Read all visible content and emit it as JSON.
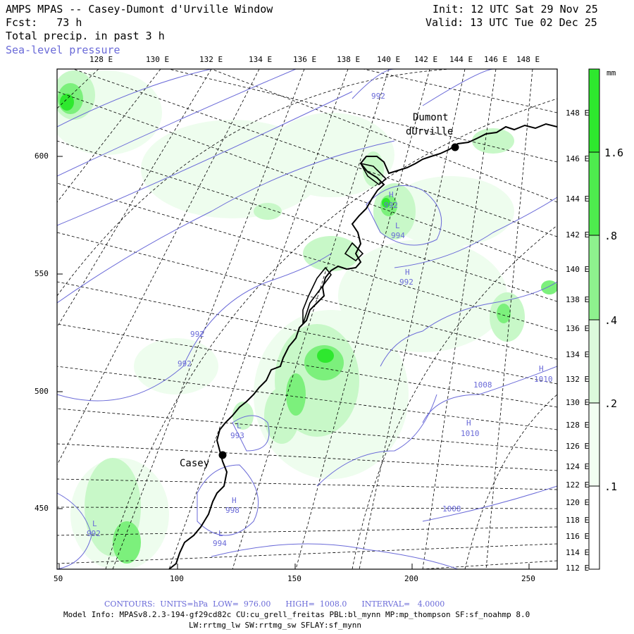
{
  "header": {
    "title": "AMPS MPAS -- Casey-Dumont d'Urville Window",
    "fcst": "Fcst:   73 h",
    "field": "Total precip. in past 3 h",
    "overlay": "Sea-level pressure",
    "init": "Init: 12 UTC Sat 29 Nov 25",
    "valid": "Valid: 13 UTC Tue 02 Dec 25"
  },
  "top_lon_labels": [
    "128 E",
    "130 E",
    "132 E",
    "134 E",
    "136 E",
    "138 E",
    "140 E",
    "142 E",
    "144 E",
    "146 E",
    "148 E"
  ],
  "right_lon_labels": [
    "148 E",
    "146 E",
    "144 E",
    "142 E",
    "140 E",
    "138 E",
    "136 E",
    "134 E",
    "132 E",
    "130 E",
    "128 E",
    "126 E",
    "124 E",
    "122 E",
    "120 E",
    "118 E",
    "116 E",
    "114 E",
    "112 E"
  ],
  "x_ticks": [
    "50",
    "100",
    "150",
    "200",
    "250"
  ],
  "y_ticks": [
    "600",
    "550",
    "500",
    "450"
  ],
  "stations": [
    {
      "name": "Dumont",
      "name2": "dUrville"
    },
    {
      "name": "Casey"
    }
  ],
  "pressure_labels": [
    "992",
    "H",
    "992",
    "L",
    "994",
    "H",
    "992",
    "992",
    "992",
    "L",
    "993",
    "1008",
    "H",
    "1010",
    "H",
    "1010",
    "H",
    "998",
    "L",
    "994",
    "L",
    "992",
    "1008"
  ],
  "colorbar": {
    "unit": "mm",
    "levels": [
      "1.6",
      ".8",
      ".4",
      ".2",
      ".1"
    ],
    "colors": [
      "#2ee82e",
      "#7cf07c",
      "#c0f8c0",
      "#e8fce8",
      "#ffffff"
    ]
  },
  "footer": {
    "contours": "CONTOURS:  UNITS=hPa  LOW=  976.00      HIGH=  1008.0      INTERVAL=   4.0000",
    "model_info": "Model Info: MPASv8.2.3-194-gf29cd82c CU:cu_grell_freitas PBL:bl_mynn MP:mp_thompson SF:sf_noahmp 8.0",
    "model_info2": "LW:rrtmg_lw SW:rrtmg_sw SFLAY:sf_mynn"
  },
  "colors": {
    "contour": "#6a6ad8",
    "precip_dark": "#2ee82e",
    "precip_mid": "#7cf07c",
    "precip_light": "#c8f8c8"
  }
}
